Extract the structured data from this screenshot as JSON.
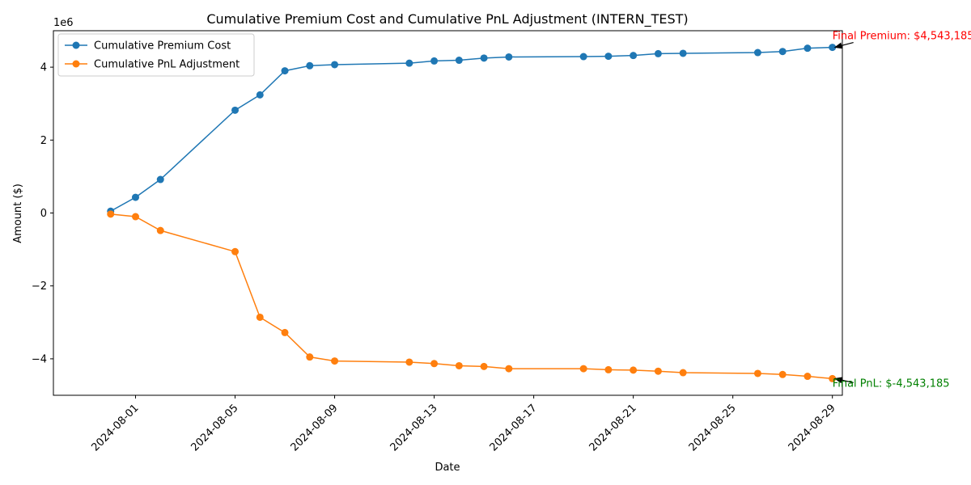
{
  "chart_data": {
    "type": "line",
    "title": "Cumulative Premium Cost and Cumulative PnL Adjustment (INTERN_TEST)",
    "xlabel": "Date",
    "ylabel": "Amount ($)",
    "y_offset_label": "1e6",
    "ylim": [
      -5000000,
      5000000
    ],
    "xlim": [
      "2024-07-29",
      "2024-08-30"
    ],
    "x_ticks": [
      "2024-08-01",
      "2024-08-05",
      "2024-08-09",
      "2024-08-13",
      "2024-08-17",
      "2024-08-21",
      "2024-08-25",
      "2024-08-29"
    ],
    "y_ticks": [
      -4000000,
      -2000000,
      0,
      2000000,
      4000000
    ],
    "y_tick_labels": [
      "−4",
      "−2",
      "0",
      "2",
      "4"
    ],
    "x": [
      "2024-07-31",
      "2024-08-01",
      "2024-08-02",
      "2024-08-05",
      "2024-08-06",
      "2024-08-07",
      "2024-08-08",
      "2024-08-09",
      "2024-08-12",
      "2024-08-13",
      "2024-08-14",
      "2024-08-15",
      "2024-08-16",
      "2024-08-19",
      "2024-08-20",
      "2024-08-21",
      "2024-08-22",
      "2024-08-23",
      "2024-08-26",
      "2024-08-27",
      "2024-08-28",
      "2024-08-29"
    ],
    "series": [
      {
        "name": "Cumulative Premium Cost",
        "color": "#1f77b4",
        "values": [
          50000,
          430000,
          920000,
          2820000,
          3240000,
          3900000,
          4040000,
          4070000,
          4110000,
          4170000,
          4190000,
          4250000,
          4280000,
          4290000,
          4300000,
          4320000,
          4370000,
          4380000,
          4400000,
          4430000,
          4520000,
          4543185
        ]
      },
      {
        "name": "Cumulative PnL Adjustment",
        "color": "#ff7f0e",
        "values": [
          -30000,
          -100000,
          -480000,
          -1060000,
          -2860000,
          -3280000,
          -3950000,
          -4060000,
          -4090000,
          -4130000,
          -4190000,
          -4210000,
          -4270000,
          -4270000,
          -4300000,
          -4310000,
          -4340000,
          -4380000,
          -4400000,
          -4430000,
          -4480000,
          -4543185
        ]
      }
    ],
    "legend_location": "upper-left",
    "grid": false,
    "annotations": [
      {
        "text": "Final Premium: $4,543,185",
        "x": "2024-08-29",
        "y": 4543185,
        "color": "#ff0000"
      },
      {
        "text": "Final PnL: $-4,543,185",
        "x": "2024-08-29",
        "y": -4543185,
        "color": "#008000"
      }
    ]
  }
}
